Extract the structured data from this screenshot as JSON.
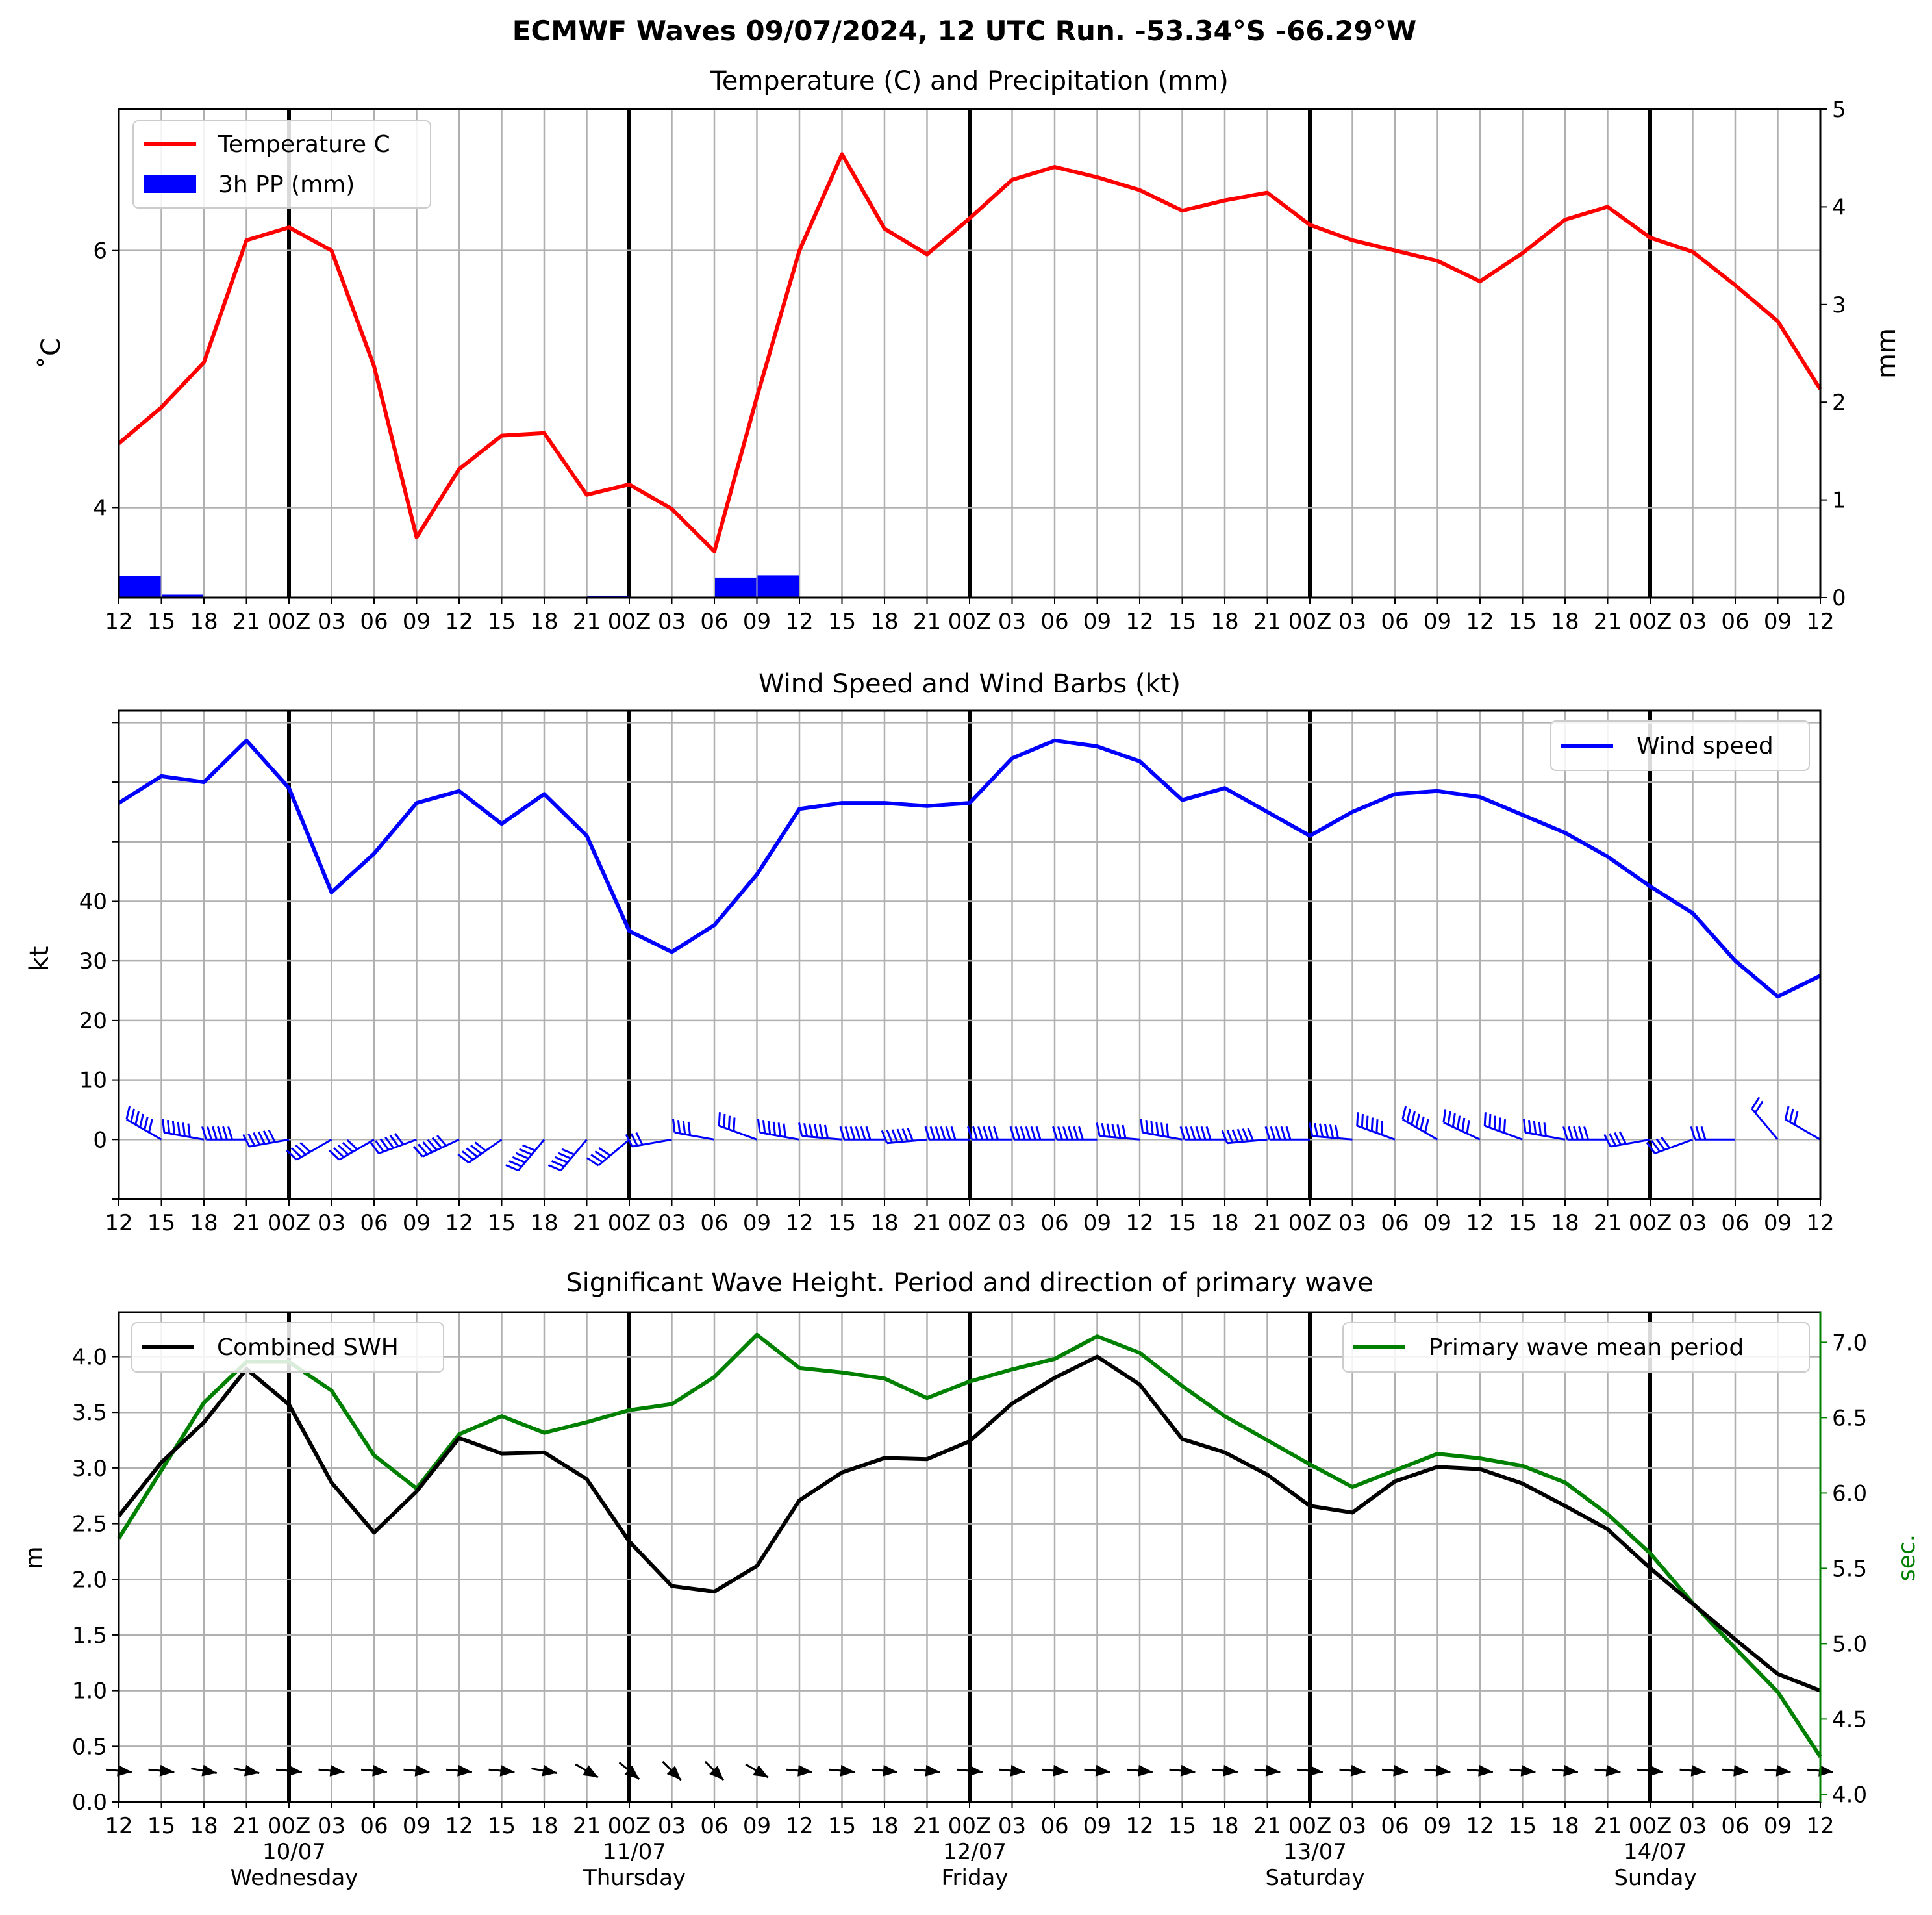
{
  "title": "ECMWF Waves 09/07/2024, 12 UTC Run. -53.34°S -66.29°W",
  "x_tick_labels": [
    "12",
    "15",
    "18",
    "21",
    "00Z",
    "03",
    "06",
    "09",
    "12",
    "15",
    "18",
    "21",
    "00Z",
    "03",
    "06",
    "09",
    "12",
    "15",
    "18",
    "21",
    "00Z",
    "03",
    "06",
    "09",
    "12",
    "15",
    "18",
    "21",
    "00Z",
    "03",
    "06",
    "09",
    "12",
    "15",
    "18",
    "21",
    "00Z",
    "03",
    "06",
    "09",
    "12"
  ],
  "day_labels": [
    {
      "date": "10/07",
      "day": "Wednesday"
    },
    {
      "date": "11/07",
      "day": "Thursday"
    },
    {
      "date": "12/07",
      "day": "Friday"
    },
    {
      "date": "13/07",
      "day": "Saturday"
    },
    {
      "date": "14/07",
      "day": "Sunday"
    }
  ],
  "colors": {
    "temperature": "#ff0000",
    "precipitation": "#0000ff",
    "wind": "#0000ff",
    "swh": "#000000",
    "period": "#008000",
    "grid": "#b0b0b0"
  },
  "chart_data": [
    {
      "type": "line",
      "title": "Temperature (C) and Precipitation (mm)",
      "ylabel": "˚C",
      "ylabel_right": "mm",
      "y_ticks": [
        "4",
        "6"
      ],
      "y2_ticks": [
        "0",
        "1",
        "2",
        "3",
        "4",
        "5"
      ],
      "ylim": [
        3.3,
        7.1
      ],
      "y2lim": [
        0,
        5
      ],
      "grid": true,
      "legend_position": "upper-left",
      "series": [
        {
          "name": "Temperature C",
          "kind": "line",
          "values": [
            4.5,
            4.78,
            5.13,
            6.08,
            6.18,
            6.0,
            5.1,
            3.77,
            4.3,
            4.56,
            4.58,
            4.1,
            4.18,
            3.99,
            3.66,
            4.86,
            6.0,
            6.75,
            6.17,
            5.97,
            6.25,
            6.55,
            6.65,
            6.57,
            6.47,
            6.31,
            6.39,
            6.45,
            6.2,
            6.08,
            6.0,
            5.92,
            5.76,
            5.98,
            6.24,
            6.34,
            6.1,
            5.99,
            5.73,
            5.45,
            4.92
          ]
        },
        {
          "name": "3h PP (mm)",
          "kind": "bar",
          "values": [
            0.22,
            0.03,
            0,
            0,
            0,
            0,
            0,
            0,
            0,
            0,
            0,
            0.02,
            0,
            0,
            0.2,
            0.23,
            0,
            0,
            0,
            0,
            0,
            0,
            0,
            0,
            0,
            0,
            0,
            0,
            0,
            0,
            0,
            0,
            0,
            0,
            0,
            0,
            0,
            0,
            0,
            0
          ]
        }
      ]
    },
    {
      "type": "line",
      "title": "Wind Speed and Wind Barbs (kt)",
      "ylabel": "kt",
      "y_ticks": [
        "0",
        "10",
        "20",
        "30",
        "40"
      ],
      "ylim": [
        -10,
        72
      ],
      "grid": true,
      "legend_position": "upper-right",
      "series": [
        {
          "name": "Wind speed",
          "values": [
            56.5,
            61,
            60,
            67,
            59,
            41.5,
            48,
            56.5,
            58.5,
            53,
            58,
            51,
            35,
            31.5,
            36,
            44.5,
            55.5,
            56.5,
            56.5,
            56,
            56.5,
            64,
            67,
            66,
            63.5,
            57,
            59,
            55,
            51,
            55,
            58,
            58.5,
            57.5,
            54.5,
            51.5,
            47.5,
            42.5,
            38,
            30,
            24,
            27.5
          ]
        }
      ],
      "barb_directions_deg": [
        310,
        300,
        280,
        270,
        260,
        240,
        240,
        250,
        245,
        235,
        220,
        220,
        230,
        260,
        280,
        290,
        280,
        275,
        270,
        265,
        270,
        270,
        270,
        270,
        275,
        280,
        270,
        265,
        270,
        275,
        290,
        300,
        295,
        290,
        280,
        270,
        260,
        250,
        270,
        320,
        300
      ]
    },
    {
      "type": "line",
      "title": "Significant Wave Height. Period and direction of primary wave",
      "ylabel": "m",
      "ylabel_right": "sec.",
      "y_ticks": [
        "0.0",
        "0.5",
        "1.0",
        "1.5",
        "2.0",
        "2.5",
        "3.0",
        "3.5",
        "4.0"
      ],
      "y2_ticks": [
        "4.0",
        "4.5",
        "5.0",
        "5.5",
        "6.0",
        "6.5",
        "7.0"
      ],
      "ylim": [
        0,
        4.4
      ],
      "y2lim": [
        3.95,
        7.2
      ],
      "grid": true,
      "series": [
        {
          "name": "Combined SWH",
          "axis": "left",
          "legend_position": "upper-left",
          "values": [
            2.57,
            3.05,
            3.41,
            3.89,
            3.57,
            2.87,
            2.42,
            2.79,
            3.27,
            3.13,
            3.14,
            2.9,
            2.34,
            1.94,
            1.89,
            2.12,
            2.71,
            2.96,
            3.09,
            3.08,
            3.24,
            3.58,
            3.81,
            4.0,
            3.75,
            3.26,
            3.14,
            2.94,
            2.66,
            2.6,
            2.88,
            3.01,
            2.99,
            2.86,
            2.66,
            2.45,
            2.1,
            1.78,
            1.46,
            1.15,
            1.0
          ]
        },
        {
          "name": "Primary wave mean period",
          "axis": "right",
          "legend_position": "upper-right",
          "values": [
            5.7,
            6.15,
            6.6,
            6.87,
            6.87,
            6.68,
            6.25,
            6.03,
            6.39,
            6.51,
            6.4,
            6.47,
            6.55,
            6.59,
            6.77,
            7.05,
            6.83,
            6.8,
            6.76,
            6.63,
            6.74,
            6.82,
            6.89,
            7.04,
            6.93,
            6.71,
            6.51,
            6.35,
            6.19,
            6.04,
            6.15,
            6.26,
            6.23,
            6.18,
            6.07,
            5.86,
            5.6,
            5.27,
            4.97,
            4.68,
            4.25
          ]
        }
      ],
      "wave_directions_deg": [
        265,
        265,
        260,
        260,
        265,
        265,
        265,
        265,
        265,
        265,
        260,
        240,
        230,
        225,
        225,
        240,
        265,
        265,
        265,
        265,
        265,
        265,
        265,
        265,
        265,
        265,
        265,
        265,
        265,
        265,
        265,
        265,
        265,
        265,
        265,
        265,
        265,
        265,
        265,
        265,
        265
      ]
    }
  ]
}
